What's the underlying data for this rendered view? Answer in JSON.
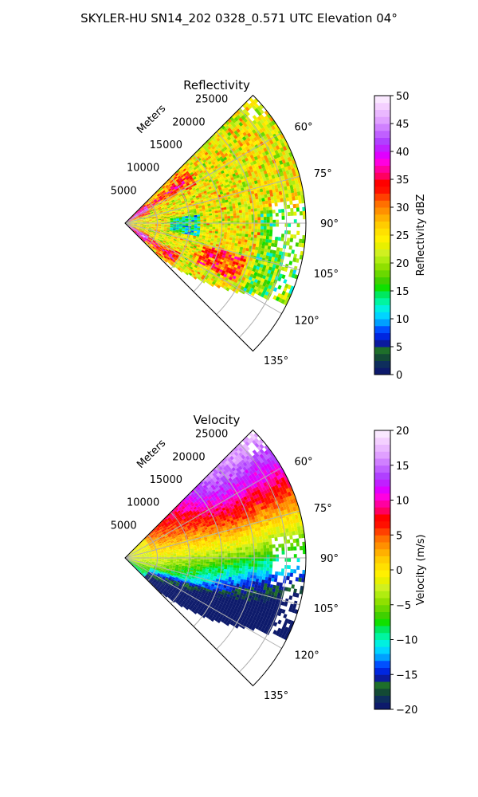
{
  "figure": {
    "title": "SKYLER-HU  SN14_202  0328_0.571 UTC Elevation 04°"
  },
  "chart_data": [
    {
      "type": "heatmap",
      "projection": "polar-sector",
      "title": "Reflectivity",
      "range_axis_label": "Meters",
      "range_ticks": [
        5000,
        10000,
        15000,
        20000,
        25000
      ],
      "range_tick_labels": [
        "5000",
        "10000",
        "15000",
        "20000",
        "25000"
      ],
      "range_max": 28000,
      "azimuth_range": [
        45,
        135
      ],
      "azimuth_ticks": [
        60,
        75,
        90,
        105,
        120,
        135
      ],
      "azimuth_tick_labels": [
        "60°",
        "75°",
        "90°",
        "105°",
        "120°",
        "135°"
      ],
      "grid": true,
      "colorbar": {
        "label": "Reflectivity dBZ",
        "vmin": 0,
        "vmax": 50,
        "ticks": [
          0,
          5,
          10,
          15,
          20,
          25,
          30,
          35,
          40,
          45,
          50
        ],
        "colors": [
          "#0d1a6b",
          "#0e2e5c",
          "#134a35",
          "#1e6e2a",
          "#0b1a9e",
          "#0026e0",
          "#0050ff",
          "#00a0ff",
          "#00d4ff",
          "#00f0e0",
          "#00f5a0",
          "#00e860",
          "#10e000",
          "#40d000",
          "#6ad800",
          "#90e000",
          "#b0ec10",
          "#d0f020",
          "#e8f000",
          "#fff000",
          "#ffe000",
          "#ffcc00",
          "#ffb000",
          "#ff9000",
          "#ff7000",
          "#ff4000",
          "#ff1000",
          "#ff0000",
          "#ff0060",
          "#ff00a0",
          "#ff00e0",
          "#e000ff",
          "#c020ff",
          "#b040ff",
          "#c060ff",
          "#d080ff",
          "#e0a0ff",
          "#eab8ff",
          "#f4d0ff",
          "#fae8ff"
        ]
      },
      "field_description_colors": {
        "dominant": "#e8f000",
        "secondary": "#90e000",
        "high": "#ff1000",
        "core": "#d000e0",
        "low": "#00f0e0"
      }
    },
    {
      "type": "heatmap",
      "projection": "polar-sector",
      "title": "Velocity",
      "range_axis_label": "Meters",
      "range_ticks": [
        5000,
        10000,
        15000,
        20000,
        25000
      ],
      "range_tick_labels": [
        "5000",
        "10000",
        "15000",
        "20000",
        "25000"
      ],
      "range_max": 28000,
      "azimuth_range": [
        45,
        135
      ],
      "azimuth_ticks": [
        60,
        75,
        90,
        105,
        120,
        135
      ],
      "azimuth_tick_labels": [
        "60°",
        "75°",
        "90°",
        "105°",
        "120°",
        "135°"
      ],
      "grid": true,
      "colorbar": {
        "label": "Velocity (m/s)",
        "vmin": -20,
        "vmax": 20,
        "ticks": [
          -20,
          -15,
          -10,
          -5,
          0,
          5,
          10,
          15,
          20
        ],
        "tick_labels": [
          "−20",
          "−15",
          "−10",
          "−5",
          "0",
          "5",
          "10",
          "15",
          "20"
        ],
        "colors": [
          "#0d1a6b",
          "#0e2e5c",
          "#134a35",
          "#1e6e2a",
          "#0b1a9e",
          "#0026e0",
          "#0050ff",
          "#00a0ff",
          "#00d4ff",
          "#00f0e0",
          "#00f5a0",
          "#00e860",
          "#10e000",
          "#40d000",
          "#6ad800",
          "#90e000",
          "#b0ec10",
          "#d0f020",
          "#e8f000",
          "#fff000",
          "#ffe000",
          "#ffcc00",
          "#ffb000",
          "#ff9000",
          "#ff7000",
          "#ff4000",
          "#ff1000",
          "#ff0000",
          "#ff0060",
          "#ff00a0",
          "#ff00e0",
          "#e000ff",
          "#c020ff",
          "#b040ff",
          "#c060ff",
          "#d080ff",
          "#e0a0ff",
          "#eab8ff",
          "#f4d0ff",
          "#fae8ff"
        ]
      }
    }
  ]
}
